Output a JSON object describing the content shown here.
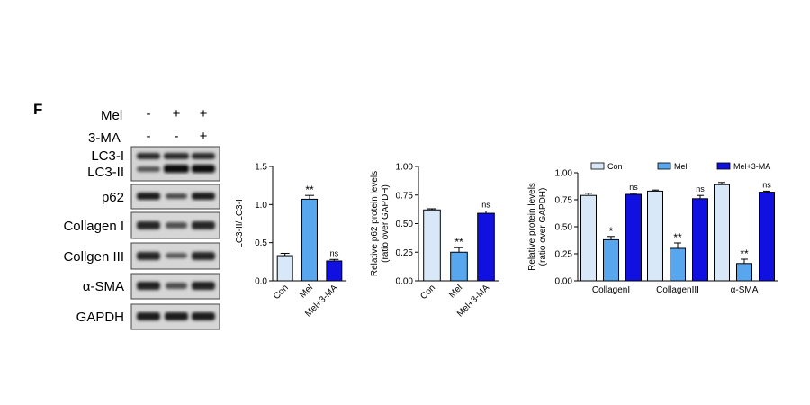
{
  "panel": {
    "label": "F"
  },
  "blot": {
    "treatments": [
      {
        "name": "Mel",
        "signs": [
          "-",
          "+",
          "+"
        ]
      },
      {
        "name": "3-MA",
        "signs": [
          "-",
          "-",
          "+"
        ]
      }
    ],
    "bands": [
      "LC3-I",
      "LC3-II",
      "p62",
      "Collagen I",
      "Collgen III",
      "α-SMA",
      "GAPDH"
    ]
  },
  "colors": {
    "con": "#d9e8f8",
    "mel": "#58a6ee",
    "mel_3ma": "#1010e0"
  },
  "chart_data": [
    {
      "type": "bar",
      "categories": [
        "Con",
        "Mel",
        "Mel+3-MA"
      ],
      "values": [
        0.33,
        1.07,
        0.26
      ],
      "errors": [
        0.03,
        0.05,
        0.02
      ],
      "significance": [
        "",
        "**",
        "ns"
      ],
      "ylabel": "LC3-II/LC3-I",
      "ylim": [
        0,
        1.5
      ],
      "yticks": [
        "0.0",
        "0.5",
        "1.0",
        "1.5"
      ]
    },
    {
      "type": "bar",
      "categories": [
        "Con",
        "Mel",
        "Mel+3-MA"
      ],
      "values": [
        0.62,
        0.25,
        0.59
      ],
      "errors": [
        0.01,
        0.04,
        0.02
      ],
      "significance": [
        "",
        "**",
        "ns"
      ],
      "ylabel": "Relative p62 protein levels",
      "ylabel2": "(ratio over GAPDH)",
      "ylim": [
        0,
        1.0
      ],
      "yticks": [
        "0.00",
        "0.25",
        "0.50",
        "0.75",
        "1.00"
      ]
    },
    {
      "type": "bar",
      "categories": [
        "CollagenI",
        "CollagenIII",
        "α-SMA"
      ],
      "series": [
        {
          "name": "Con",
          "values": [
            0.79,
            0.83,
            0.89
          ],
          "errors": [
            0.02,
            0.01,
            0.02
          ],
          "significance": [
            "",
            "",
            ""
          ]
        },
        {
          "name": "Mel",
          "values": [
            0.38,
            0.3,
            0.16
          ],
          "errors": [
            0.03,
            0.05,
            0.04
          ],
          "significance": [
            "*",
            "**",
            "**"
          ]
        },
        {
          "name": "Mel+3-MA",
          "values": [
            0.8,
            0.76,
            0.82
          ],
          "errors": [
            0.01,
            0.03,
            0.01
          ],
          "significance": [
            "ns",
            "ns",
            "ns"
          ]
        }
      ],
      "ylabel": "Relative protein levels",
      "ylabel2": "(ratio over GAPDH)",
      "ylim": [
        0,
        1.0
      ],
      "yticks": [
        "0.00",
        "0.25",
        "0.50",
        "0.75",
        "1.00"
      ],
      "legend": "top"
    }
  ]
}
